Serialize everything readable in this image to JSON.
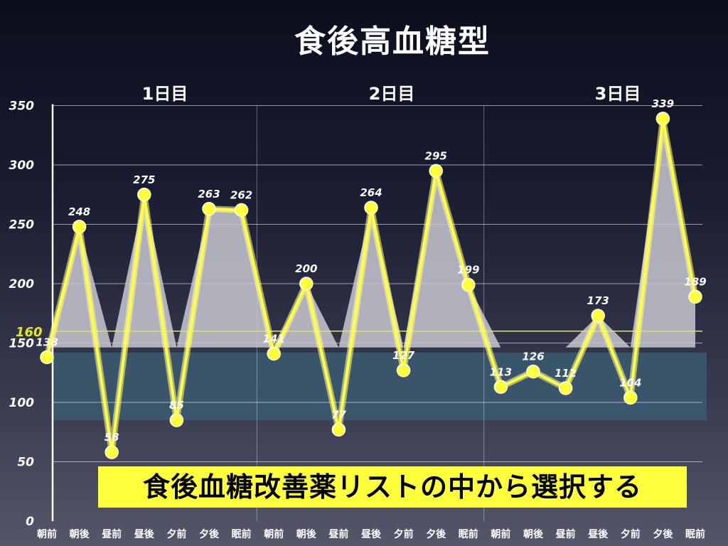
{
  "title": "食後高血糖型",
  "banner": "食後血糖改善薬リストの中から選択する",
  "colors": {
    "line": "#ffff3b",
    "point": "#ffff3b",
    "area": "#c8c8d2",
    "threshold_line": "#e8e822",
    "target_band": "#3b5a6e",
    "axis": "#ffffff",
    "text": "#ffffff"
  },
  "chart_data": {
    "type": "line",
    "title": "食後高血糖型",
    "ylim": [
      0,
      350
    ],
    "yticks": [
      0,
      50,
      100,
      150,
      200,
      250,
      300,
      350
    ],
    "grid": true,
    "categories": [
      "朝前",
      "朝後",
      "昼前",
      "昼後",
      "夕前",
      "夕後",
      "眠前",
      "朝前",
      "朝後",
      "昼前",
      "昼後",
      "夕前",
      "夕後",
      "眠前",
      "朝前",
      "朝後",
      "昼前",
      "昼後",
      "夕前",
      "夕後",
      "眠前"
    ],
    "groups": [
      "1日目",
      "2日目",
      "3日目"
    ],
    "series": [
      {
        "values": [
          138,
          248,
          58,
          275,
          85,
          263,
          262,
          141,
          200,
          77,
          264,
          127,
          295,
          199,
          113,
          126,
          112,
          173,
          104,
          339,
          189
        ]
      }
    ],
    "threshold": {
      "value": 160,
      "label": "160"
    },
    "target_band": {
      "from": 85,
      "to": 142
    }
  }
}
